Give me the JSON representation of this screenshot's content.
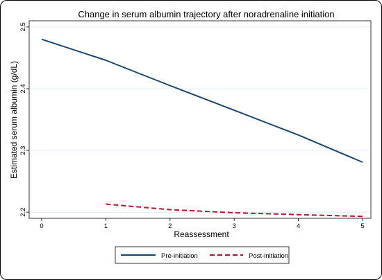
{
  "chart_data": {
    "type": "line",
    "title": "Change in serum albumin trajectory after noradrenaline initiation",
    "xlabel": "Reassessment",
    "ylabel": "Estimated serum albumin (g/dL)",
    "xlim": [
      0,
      5
    ],
    "ylim": [
      2.19,
      2.51
    ],
    "x_ticks": [
      0,
      1,
      2,
      3,
      4,
      5
    ],
    "y_ticks": [
      2.2,
      2.3,
      2.4,
      2.5
    ],
    "x_tick_labels": [
      "0",
      "1",
      "2",
      "3",
      "4",
      "5"
    ],
    "y_tick_labels": [
      "2.2",
      "2.3",
      "2.4",
      "2.5"
    ],
    "grid": "horizontal",
    "legend_position": "bottom",
    "series": [
      {
        "name": "Pre-initiation",
        "color": "#1a476f",
        "style": "solid",
        "x": [
          0,
          1,
          2,
          3,
          4,
          5
        ],
        "values": [
          2.48,
          2.446,
          2.405,
          2.365,
          2.325,
          2.281
        ]
      },
      {
        "name": "Post-initiation",
        "color": "#b2182b",
        "style": "dashed",
        "x": [
          1,
          2,
          3,
          4,
          5
        ],
        "values": [
          2.213,
          2.204,
          2.199,
          2.196,
          2.193
        ]
      }
    ]
  }
}
